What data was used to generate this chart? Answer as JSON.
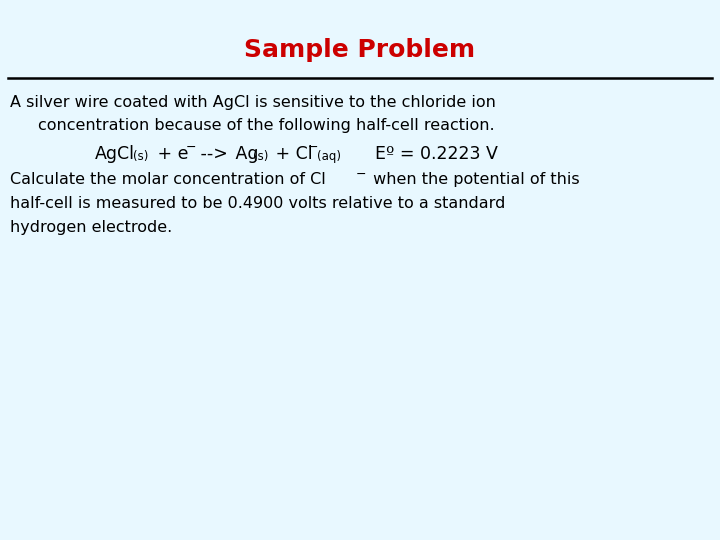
{
  "title": "Sample Problem",
  "title_color": "#cc0000",
  "title_fontsize": 18,
  "background_color": "#e8f8ff",
  "line_color": "#000000",
  "text_color": "#000000",
  "body_fontsize": 11.5,
  "eq_fontsize": 12.5,
  "sub_fontsize": 8.5,
  "sup_fontsize": 9.0,
  "line1": "A silver wire coated with AgCl is sensitive to the chloride ion",
  "line2": "concentration because of the following half-cell reaction.",
  "line5": "half-cell is measured to be 0.4900 volts relative to a standard",
  "line6": "hydrogen electrode."
}
